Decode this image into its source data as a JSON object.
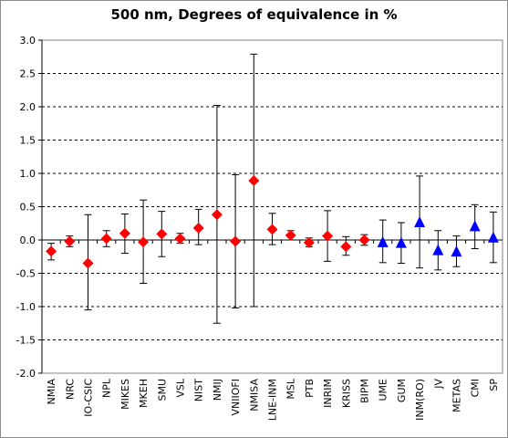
{
  "chart_data": {
    "type": "scatter",
    "title": "500 nm, Degrees of equivalence in %",
    "xlabel": "",
    "ylabel": "",
    "ylim": [
      -2.0,
      3.0
    ],
    "ytick_labels": [
      "3.0",
      "2.5",
      "2.0",
      "1.5",
      "1.0",
      "0.5",
      "0.0",
      "-0.5",
      "-1.0",
      "-1.5",
      "-2.0"
    ],
    "yticks": [
      3.0,
      2.5,
      2.0,
      1.5,
      1.0,
      0.5,
      0.0,
      -0.5,
      -1.0,
      -1.5,
      -2.0
    ],
    "grid": "horizontal dashed",
    "categories": [
      "NMIA",
      "NRC",
      "IO-CSIC",
      "NPL",
      "MIKES",
      "MKEH",
      "SMU",
      "VSL",
      "NIST",
      "NMIJ",
      "VNIIOFI",
      "NMISA",
      "LNE-INM",
      "MSL",
      "PTB",
      "INRIM",
      "KRISS",
      "BIPM",
      "UME",
      "GUM",
      "INM(RO)",
      "JV",
      "METAS",
      "CMI",
      "SP"
    ],
    "series": [
      {
        "marker": "diamond",
        "color": "#ff0000",
        "categories": [
          "NMIA",
          "NRC",
          "IO-CSIC",
          "NPL",
          "MIKES",
          "MKEH",
          "SMU",
          "VSL",
          "NIST",
          "NMIJ",
          "VNIIOFI",
          "NMISA",
          "LNE-INM",
          "MSL",
          "PTB",
          "INRIM",
          "KRISS",
          "BIPM"
        ],
        "values": [
          -0.17,
          -0.02,
          -0.35,
          0.02,
          0.1,
          -0.03,
          0.09,
          0.02,
          0.18,
          0.38,
          -0.02,
          0.89,
          0.16,
          0.07,
          -0.04,
          0.06,
          -0.1,
          0.0
        ],
        "error_low": [
          -0.3,
          -0.1,
          -1.05,
          -0.1,
          -0.2,
          -0.65,
          -0.25,
          -0.05,
          -0.07,
          -1.25,
          -1.02,
          -1.0,
          -0.07,
          0.0,
          -0.1,
          -0.32,
          -0.23,
          -0.08
        ],
        "error_high": [
          -0.05,
          0.06,
          0.38,
          0.14,
          0.39,
          0.6,
          0.43,
          0.1,
          0.46,
          2.02,
          0.98,
          2.79,
          0.4,
          0.14,
          0.03,
          0.44,
          0.05,
          0.08
        ]
      },
      {
        "marker": "triangle",
        "color": "#0000ff",
        "categories": [
          "UME",
          "GUM",
          "INM(RO)",
          "JV",
          "METAS",
          "CMI",
          "SP"
        ],
        "values": [
          -0.04,
          -0.05,
          0.26,
          -0.16,
          -0.18,
          0.2,
          0.03
        ],
        "error_low": [
          -0.34,
          -0.35,
          -0.42,
          -0.45,
          -0.4,
          -0.13,
          -0.34
        ],
        "error_high": [
          0.3,
          0.26,
          0.96,
          0.14,
          0.06,
          0.53,
          0.42
        ]
      }
    ]
  }
}
